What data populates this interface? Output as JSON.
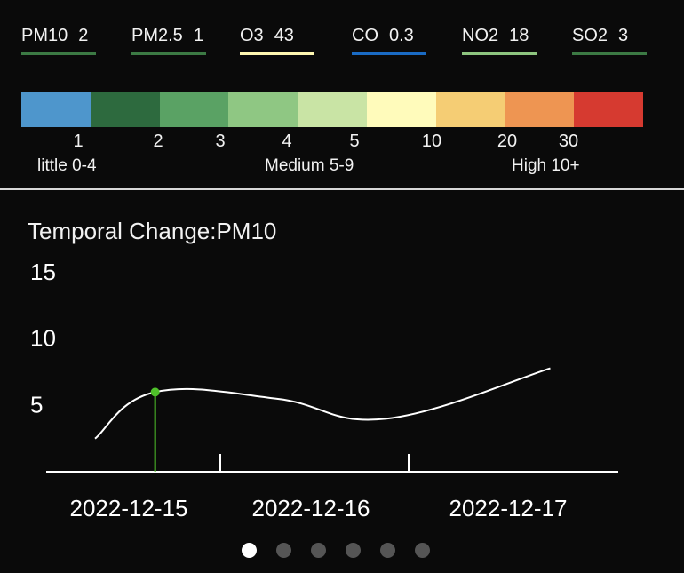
{
  "pollutants": [
    {
      "name": "PM10",
      "value": "2",
      "color": "#3c7a44"
    },
    {
      "name": "PM2.5",
      "value": "1",
      "color": "#3c7a44"
    },
    {
      "name": "O3",
      "value": "43",
      "color": "#fdf6b0"
    },
    {
      "name": "CO",
      "value": "0.3",
      "color": "#1a6bc4"
    },
    {
      "name": "NO2",
      "value": "18",
      "color": "#8ec57f"
    },
    {
      "name": "SO2",
      "value": "3",
      "color": "#3c7a44"
    }
  ],
  "color_scale": {
    "colors": [
      "#4e96cc",
      "#2d6a3e",
      "#5aa264",
      "#8fc783",
      "#c9e4a5",
      "#fffbbb",
      "#f5cd74",
      "#ee9552",
      "#d63a30"
    ],
    "ticks": [
      "1",
      "2",
      "3",
      "4",
      "5",
      "10",
      "20",
      "30"
    ],
    "levels": [
      "little 0-4",
      "Medium 5-9",
      "High 10+"
    ]
  },
  "chart_title": "Temporal Change:PM10",
  "chart_data": {
    "type": "line",
    "x": [
      0,
      0.33,
      1.0,
      1.6,
      2.5
    ],
    "y": [
      2.5,
      6.0,
      5.5,
      4.0,
      7.8
    ],
    "x_tick_labels": [
      "2022-12-15",
      "2022-12-16",
      "2022-12-17"
    ],
    "y_ticks": [
      5,
      10,
      15
    ],
    "ylim": [
      0,
      15
    ],
    "highlight": {
      "x": 0.33,
      "y": 6.0,
      "color": "#4fc12a"
    },
    "line_color": "#ffffff"
  },
  "pager": {
    "count": 6,
    "active": 0
  }
}
